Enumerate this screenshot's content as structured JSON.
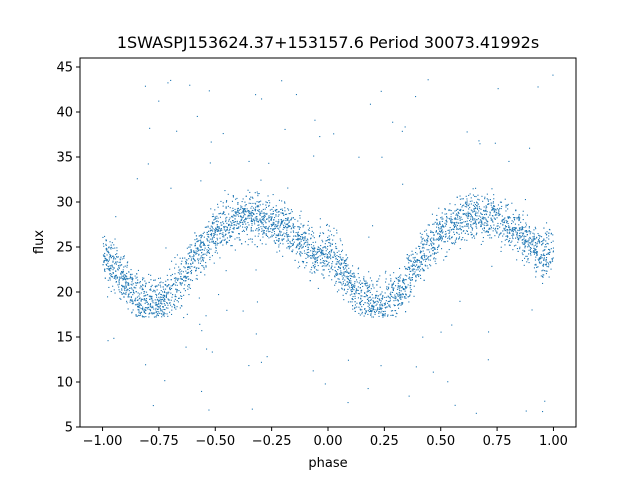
{
  "chart_data": {
    "type": "scatter",
    "title": "1SWASPJ153624.37+153157.6 Period 30073.41992s",
    "xlabel": "phase",
    "ylabel": "flux",
    "xlim": [
      -1.1,
      1.1
    ],
    "ylim": [
      5,
      46
    ],
    "xticks": [
      -1.0,
      -0.75,
      -0.5,
      -0.25,
      0.0,
      0.25,
      0.5,
      0.75,
      1.0
    ],
    "xtick_labels": [
      "−1.00",
      "−0.75",
      "−0.50",
      "−0.25",
      "0.00",
      "0.25",
      "0.50",
      "0.75",
      "1.00"
    ],
    "yticks": [
      5,
      10,
      15,
      20,
      25,
      30,
      35,
      40,
      45
    ],
    "ytick_labels": [
      "5",
      "10",
      "15",
      "20",
      "25",
      "30",
      "35",
      "40",
      "45"
    ],
    "grid": false,
    "marker_color": "#1f77b4",
    "light_curve": {
      "phase": [
        -1.0,
        -0.95,
        -0.9,
        -0.85,
        -0.8,
        -0.75,
        -0.7,
        -0.65,
        -0.6,
        -0.55,
        -0.5,
        -0.45,
        -0.4,
        -0.35,
        -0.3,
        -0.25,
        -0.2,
        -0.15,
        -0.1,
        -0.05,
        0.0,
        0.05,
        0.1,
        0.15,
        0.2,
        0.25,
        0.3,
        0.35,
        0.4,
        0.45,
        0.5,
        0.55,
        0.6,
        0.65,
        0.7,
        0.75,
        0.8,
        0.85,
        0.9,
        0.95,
        1.0
      ],
      "flux_median": [
        24.5,
        22.8,
        21.0,
        19.6,
        18.9,
        18.6,
        19.6,
        21.4,
        23.4,
        25.2,
        26.6,
        27.6,
        28.1,
        28.3,
        28.3,
        28.0,
        27.4,
        26.5,
        25.4,
        24.0,
        24.5,
        22.8,
        21.0,
        19.6,
        18.9,
        18.6,
        19.6,
        21.4,
        23.4,
        25.2,
        26.6,
        27.6,
        28.1,
        28.3,
        28.3,
        28.0,
        27.4,
        26.5,
        25.4,
        24.0,
        24.5
      ],
      "flux_scatter": 2.2,
      "n_points": 4200
    },
    "outlier_range": [
      6.5,
      44.5
    ]
  }
}
